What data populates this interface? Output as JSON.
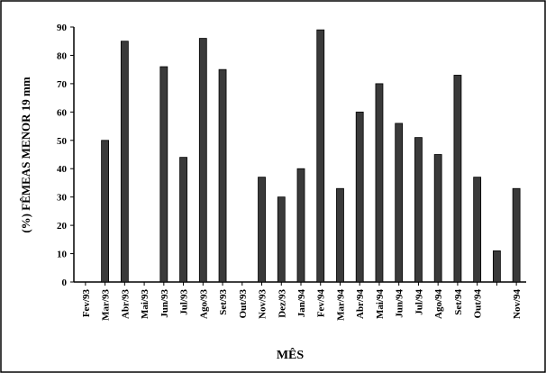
{
  "chart_data": {
    "type": "bar",
    "ylabel": "(%) FÊMEAS MENOR 19 mm",
    "xlabel": "MÊS",
    "categories": [
      "Fev/93",
      "Mar/93",
      "Abr/93",
      "Mai/93",
      "Jun/93",
      "Jul/93",
      "Ago/93",
      "Set/93",
      "Out/93",
      "Nov/93",
      "Dez/93",
      "Jan/94",
      "Fev/94",
      "Mar/94",
      "Abr/94",
      "Mai/94",
      "Jun/94",
      "Jul/94",
      "Ago/94",
      "Set/94",
      "Out/94",
      null,
      "Nov/94"
    ],
    "values": [
      0,
      50,
      85,
      0,
      76,
      44,
      86,
      75,
      0,
      37,
      30,
      40,
      89,
      33,
      60,
      70,
      56,
      51,
      45,
      73,
      37,
      11,
      33
    ],
    "color": "#3a3a3a",
    "ylim": [
      0,
      90
    ],
    "yticks": [
      0,
      10,
      20,
      30,
      40,
      50,
      60,
      70,
      80,
      90
    ],
    "grid": false
  }
}
